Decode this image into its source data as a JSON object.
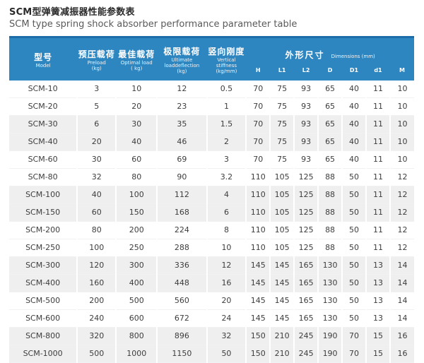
{
  "title": {
    "zh": "SCM型弹簧减振器性能参数表",
    "en": "SCM type spring shock absorber performance parameter table"
  },
  "table": {
    "columns": [
      {
        "zh": "型号",
        "en": "Model",
        "unit": ""
      },
      {
        "zh": "预压载荷",
        "en": "Preload",
        "unit": "(kg)"
      },
      {
        "zh": "最佳载荷",
        "en": "Optimal load",
        "unit": "( kg)"
      },
      {
        "zh": "极限载荷",
        "en": "Ultimate loaddeflection",
        "unit": "(kg)"
      },
      {
        "zh": "竖向刚度",
        "en": "Vertical stiffness",
        "unit": "(kg/mm)"
      }
    ],
    "dims_group": {
      "zh": "外形尺寸",
      "en": "Dimensions (mm)"
    },
    "dim_columns": [
      "H",
      "L1",
      "L2",
      "D",
      "D1",
      "d1",
      "M"
    ],
    "rows": [
      [
        "SCM-10",
        "3",
        "10",
        "12",
        "0.5",
        "70",
        "75",
        "93",
        "65",
        "40",
        "11",
        "10"
      ],
      [
        "SCM-20",
        "5",
        "20",
        "23",
        "1",
        "70",
        "75",
        "93",
        "65",
        "40",
        "11",
        "10"
      ],
      [
        "SCM-30",
        "6",
        "30",
        "35",
        "1.5",
        "70",
        "75",
        "93",
        "65",
        "40",
        "11",
        "10"
      ],
      [
        "SCM-40",
        "20",
        "40",
        "46",
        "2",
        "70",
        "75",
        "93",
        "65",
        "40",
        "11",
        "10"
      ],
      [
        "SCM-60",
        "30",
        "60",
        "69",
        "3",
        "70",
        "75",
        "93",
        "65",
        "40",
        "11",
        "10"
      ],
      [
        "SCM-80",
        "32",
        "80",
        "90",
        "3.2",
        "110",
        "105",
        "125",
        "88",
        "50",
        "11",
        "12"
      ],
      [
        "SCM-100",
        "40",
        "100",
        "112",
        "4",
        "110",
        "105",
        "125",
        "88",
        "50",
        "11",
        "12"
      ],
      [
        "SCM-150",
        "60",
        "150",
        "168",
        "6",
        "110",
        "105",
        "125",
        "88",
        "50",
        "11",
        "12"
      ],
      [
        "SCM-200",
        "80",
        "200",
        "224",
        "8",
        "110",
        "105",
        "125",
        "88",
        "50",
        "11",
        "12"
      ],
      [
        "SCM-250",
        "100",
        "250",
        "288",
        "10",
        "110",
        "105",
        "125",
        "88",
        "50",
        "11",
        "12"
      ],
      [
        "SCM-300",
        "120",
        "300",
        "336",
        "12",
        "145",
        "145",
        "165",
        "130",
        "50",
        "13",
        "14"
      ],
      [
        "SCM-400",
        "160",
        "400",
        "448",
        "16",
        "145",
        "145",
        "165",
        "130",
        "50",
        "13",
        "14"
      ],
      [
        "SCM-500",
        "200",
        "500",
        "560",
        "20",
        "145",
        "145",
        "165",
        "130",
        "50",
        "13",
        "14"
      ],
      [
        "SCM-600",
        "240",
        "600",
        "672",
        "24",
        "145",
        "145",
        "165",
        "130",
        "50",
        "13",
        "14"
      ],
      [
        "SCM-800",
        "320",
        "800",
        "896",
        "32",
        "150",
        "210",
        "245",
        "190",
        "70",
        "15",
        "16"
      ],
      [
        "SCM-1000",
        "500",
        "1000",
        "1150",
        "50",
        "150",
        "210",
        "245",
        "190",
        "70",
        "15",
        "16"
      ]
    ]
  },
  "colors": {
    "header_bg": "#2e86c1",
    "header_top_strip": "#1c6da9",
    "stripe": "#efefef"
  }
}
